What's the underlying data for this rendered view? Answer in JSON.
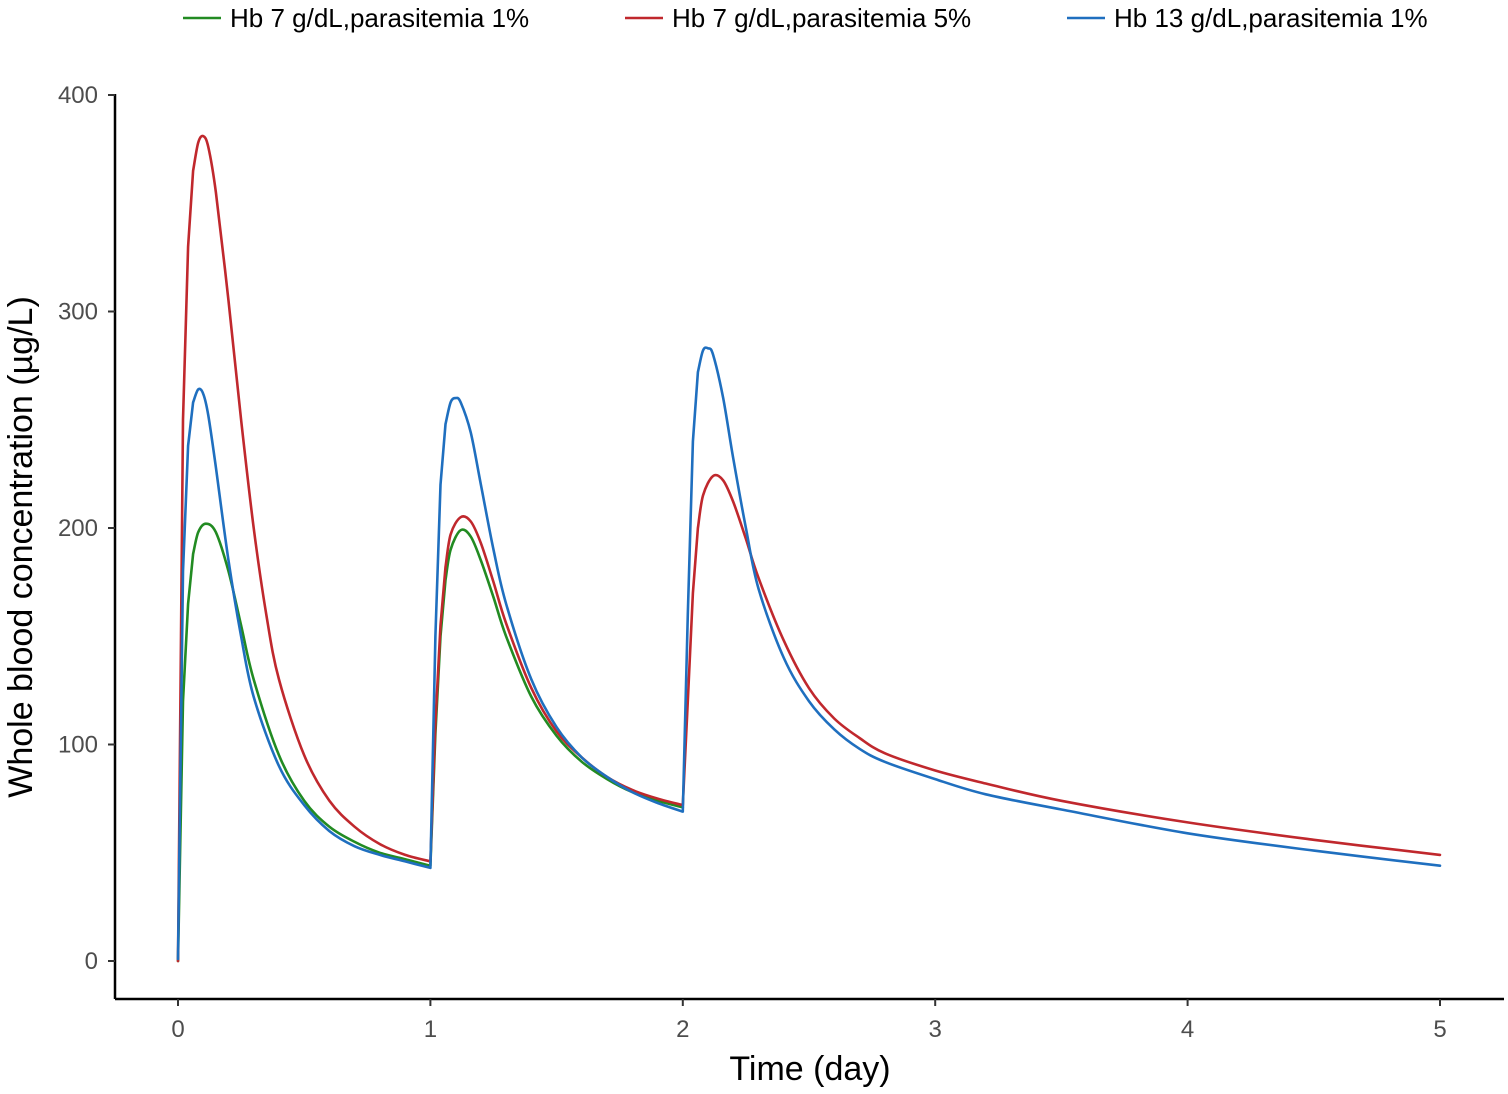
{
  "chart_data": {
    "type": "line",
    "title": "",
    "xlabel": "Time (day)",
    "ylabel": "Whole blood concentration (µg/L)",
    "xlim": [
      -0.25,
      5.25
    ],
    "ylim": [
      -17,
      400
    ],
    "xticks": [
      0,
      1,
      2,
      3,
      4,
      5
    ],
    "yticks": [
      0,
      100,
      200,
      300,
      400
    ],
    "grid": false,
    "legend_position": "top",
    "series": [
      {
        "name": "Hb 7 g/dL,parasitemia 1%",
        "color": "#228b22",
        "x": [
          0.0,
          0.02,
          0.04,
          0.06,
          0.08,
          0.11,
          0.15,
          0.2,
          0.25,
          0.3,
          0.4,
          0.5,
          0.6,
          0.7,
          0.8,
          0.9,
          1.0,
          1.02,
          1.04,
          1.06,
          1.08,
          1.12,
          1.16,
          1.2,
          1.25,
          1.3,
          1.4,
          1.5,
          1.6,
          1.7,
          1.8,
          1.9,
          2.0
        ],
        "values": [
          0,
          120,
          165,
          188,
          198,
          202,
          198,
          180,
          155,
          130,
          95,
          74,
          62,
          55,
          50,
          47,
          44,
          105,
          150,
          176,
          190,
          199,
          196,
          185,
          168,
          150,
          122,
          104,
          92,
          84,
          78,
          74,
          71
        ]
      },
      {
        "name": "Hb 7 g/dL,parasitemia 5%",
        "color": "#c0282d",
        "x": [
          0.0,
          0.02,
          0.04,
          0.06,
          0.08,
          0.1,
          0.12,
          0.15,
          0.2,
          0.25,
          0.3,
          0.35,
          0.4,
          0.5,
          0.6,
          0.7,
          0.8,
          0.9,
          1.0,
          1.02,
          1.04,
          1.06,
          1.08,
          1.12,
          1.16,
          1.2,
          1.25,
          1.3,
          1.4,
          1.5,
          1.6,
          1.7,
          1.8,
          1.9,
          2.0,
          2.02,
          2.04,
          2.06,
          2.08,
          2.12,
          2.16,
          2.2,
          2.25,
          2.3,
          2.4,
          2.5,
          2.6,
          2.7,
          2.8,
          3.0,
          3.2,
          3.5,
          4.0,
          4.5,
          5.0
        ],
        "values": [
          0,
          250,
          330,
          365,
          378,
          381,
          376,
          355,
          305,
          250,
          200,
          160,
          130,
          95,
          74,
          62,
          54,
          49,
          46,
          110,
          155,
          182,
          197,
          205,
          203,
          193,
          175,
          156,
          126,
          106,
          94,
          85,
          79,
          75,
          72,
          120,
          170,
          200,
          215,
          224,
          222,
          212,
          195,
          177,
          148,
          126,
          112,
          103,
          96,
          88,
          82,
          74,
          64,
          56,
          49
        ]
      },
      {
        "name": "Hb 13 g/dL,parasitemia 1%",
        "color": "#1f6fbf",
        "x": [
          0.0,
          0.02,
          0.04,
          0.06,
          0.08,
          0.1,
          0.12,
          0.15,
          0.2,
          0.25,
          0.3,
          0.4,
          0.5,
          0.6,
          0.7,
          0.8,
          0.9,
          1.0,
          1.02,
          1.04,
          1.06,
          1.08,
          1.1,
          1.12,
          1.16,
          1.2,
          1.25,
          1.3,
          1.4,
          1.5,
          1.6,
          1.7,
          1.8,
          1.9,
          2.0,
          2.02,
          2.04,
          2.06,
          2.08,
          2.1,
          2.12,
          2.16,
          2.2,
          2.25,
          2.3,
          2.4,
          2.5,
          2.6,
          2.7,
          2.8,
          3.0,
          3.2,
          3.5,
          4.0,
          4.5,
          5.0
        ],
        "values": [
          1,
          180,
          238,
          258,
          264,
          262,
          252,
          228,
          185,
          150,
          122,
          90,
          72,
          60,
          53,
          49,
          46,
          43,
          150,
          220,
          248,
          258,
          260,
          258,
          244,
          220,
          190,
          165,
          130,
          108,
          94,
          85,
          78,
          73,
          69,
          160,
          240,
          272,
          282,
          283,
          280,
          260,
          232,
          200,
          172,
          140,
          120,
          107,
          98,
          92,
          84,
          77,
          70,
          59,
          51,
          44
        ]
      }
    ]
  }
}
